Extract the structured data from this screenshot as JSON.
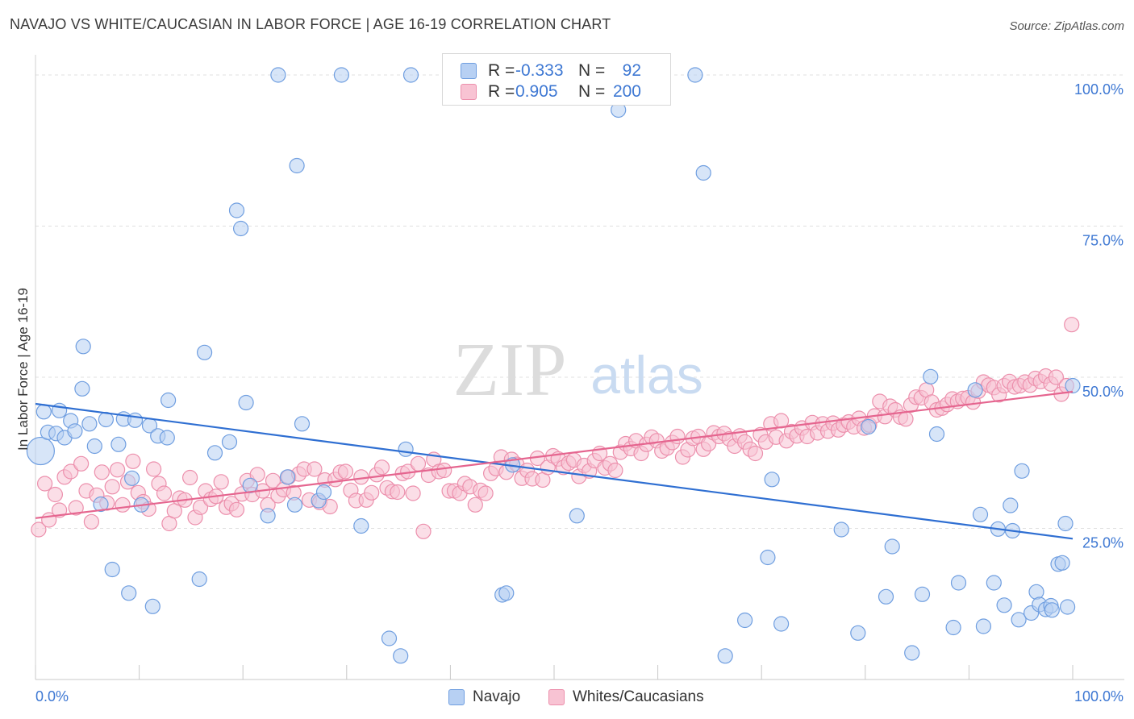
{
  "title": "NAVAJO VS WHITE/CAUCASIAN IN LABOR FORCE | AGE 16-19 CORRELATION CHART",
  "source": "Source: ZipAtlas.com",
  "watermark": {
    "zip": "ZIP",
    "atlas": "atlas"
  },
  "legend": {
    "navajo": {
      "r_label": "R =",
      "r_value": "-0.333",
      "n_label": "N =",
      "n_value": "92"
    },
    "white": {
      "r_label": "R =",
      "r_value": "0.905",
      "n_label": "N =",
      "n_value": "200"
    }
  },
  "bottom_legend": {
    "navajo": "Navajo",
    "white": "Whites/Caucasians"
  },
  "colors": {
    "navajo_fill": "#b7d0f3",
    "navajo_stroke": "#6f9ee0",
    "navajo_line": "#2f6fd2",
    "white_fill": "#f8c3d3",
    "white_stroke": "#ec8fac",
    "white_line": "#e5658f",
    "axis_text": "#3e78d3",
    "grid": "#e0e0e0"
  },
  "chart_data": {
    "type": "scatter",
    "title": "NAVAJO VS WHITE/CAUCASIAN IN LABOR FORCE | AGE 16-19 CORRELATION CHART",
    "xlabel": "",
    "ylabel": "In Labor Force | Age 16-19",
    "xlim": [
      0,
      100
    ],
    "ylim": [
      0,
      102
    ],
    "x_tick_labels": [
      "0.0%",
      "100.0%"
    ],
    "y_ticks": [
      25,
      50,
      75,
      100
    ],
    "y_tick_labels": [
      "25.0%",
      "50.0%",
      "75.0%",
      "100.0%"
    ],
    "grid": true,
    "legend_position": "top-center",
    "series": [
      {
        "name": "Navajo",
        "r": -0.333,
        "n": 92,
        "trend": {
          "x": [
            0,
            100
          ],
          "y": [
            45.6,
            23.3
          ]
        },
        "points": [
          [
            0.5,
            37.8,
            "large"
          ],
          [
            0.8,
            44.3
          ],
          [
            1.2,
            40.9
          ],
          [
            2.0,
            40.7
          ],
          [
            2.3,
            44.5
          ],
          [
            2.8,
            40.0
          ],
          [
            3.4,
            42.8
          ],
          [
            3.8,
            41.1
          ],
          [
            4.5,
            48.1
          ],
          [
            4.6,
            55.1
          ],
          [
            5.2,
            42.3
          ],
          [
            5.7,
            38.6
          ],
          [
            6.3,
            29.0
          ],
          [
            6.8,
            43.0
          ],
          [
            7.4,
            18.2
          ],
          [
            8.0,
            38.9
          ],
          [
            8.5,
            43.1
          ],
          [
            9.3,
            33.3
          ],
          [
            9.6,
            42.9
          ],
          [
            10.2,
            28.9
          ],
          [
            9.0,
            14.3
          ],
          [
            11.0,
            42.0
          ],
          [
            11.8,
            40.3
          ],
          [
            12.7,
            40.0
          ],
          [
            11.3,
            12.1
          ],
          [
            12.8,
            46.2
          ],
          [
            15.8,
            16.6
          ],
          [
            16.3,
            54.1
          ],
          [
            17.3,
            37.5
          ],
          [
            18.7,
            39.3
          ],
          [
            19.4,
            77.6
          ],
          [
            19.8,
            74.6
          ],
          [
            20.3,
            45.8
          ],
          [
            20.7,
            32.1
          ],
          [
            22.4,
            27.1
          ],
          [
            23.4,
            100
          ],
          [
            24.3,
            33.5
          ],
          [
            25.2,
            85.0
          ],
          [
            25.0,
            28.9
          ],
          [
            25.7,
            42.3
          ],
          [
            27.3,
            29.6
          ],
          [
            27.8,
            31.0
          ],
          [
            29.5,
            100
          ],
          [
            31.4,
            25.4
          ],
          [
            34.1,
            6.8
          ],
          [
            35.2,
            3.9
          ],
          [
            35.7,
            38.1
          ],
          [
            36.2,
            100
          ],
          [
            45.0,
            14.0
          ],
          [
            45.4,
            14.3
          ],
          [
            46.0,
            35.5
          ],
          [
            52.2,
            27.1
          ],
          [
            56.2,
            94.2
          ],
          [
            63.6,
            100
          ],
          [
            64.4,
            83.8
          ],
          [
            66.5,
            3.9
          ],
          [
            68.4,
            9.8
          ],
          [
            70.6,
            20.2
          ],
          [
            71.0,
            33.1
          ],
          [
            71.9,
            9.2
          ],
          [
            77.7,
            24.8
          ],
          [
            79.3,
            7.7
          ],
          [
            80.3,
            41.8
          ],
          [
            82.0,
            13.7
          ],
          [
            82.6,
            22.0
          ],
          [
            84.5,
            4.4
          ],
          [
            85.5,
            14.1
          ],
          [
            86.3,
            50.1
          ],
          [
            86.9,
            40.6
          ],
          [
            88.5,
            8.6
          ],
          [
            89.0,
            16.0
          ],
          [
            90.6,
            47.9
          ],
          [
            91.1,
            27.3
          ],
          [
            91.4,
            8.8
          ],
          [
            92.4,
            16.0
          ],
          [
            92.8,
            24.9
          ],
          [
            93.4,
            12.3
          ],
          [
            94.0,
            28.8
          ],
          [
            94.2,
            24.6
          ],
          [
            94.8,
            9.9
          ],
          [
            95.1,
            34.5
          ],
          [
            96.0,
            11.0
          ],
          [
            96.5,
            14.5
          ],
          [
            96.8,
            12.4
          ],
          [
            97.4,
            11.6
          ],
          [
            97.9,
            12.2
          ],
          [
            98.0,
            11.5
          ],
          [
            98.6,
            19.1
          ],
          [
            99.0,
            19.3
          ],
          [
            99.3,
            25.8
          ],
          [
            99.5,
            12.0
          ],
          [
            100.0,
            48.6
          ]
        ]
      },
      {
        "name": "Whites/Caucasians",
        "r": 0.905,
        "n": 200,
        "trend": {
          "x": [
            0,
            100
          ],
          "y": [
            26.7,
            47.6
          ]
        },
        "points": [
          [
            0.3,
            24.8
          ],
          [
            0.9,
            32.4
          ],
          [
            1.3,
            26.4
          ],
          [
            1.9,
            30.6
          ],
          [
            2.3,
            28.0
          ],
          [
            2.8,
            33.5
          ],
          [
            3.4,
            34.4
          ],
          [
            3.9,
            28.4
          ],
          [
            4.4,
            35.7
          ],
          [
            4.9,
            31.2
          ],
          [
            5.4,
            26.1
          ],
          [
            5.9,
            30.5
          ],
          [
            6.4,
            34.3
          ],
          [
            6.9,
            29.2
          ],
          [
            7.4,
            31.9
          ],
          [
            7.9,
            34.7
          ],
          [
            8.4,
            28.9
          ],
          [
            8.9,
            32.7
          ],
          [
            9.4,
            36.1
          ],
          [
            9.9,
            30.9
          ],
          [
            10.4,
            29.4
          ],
          [
            10.9,
            28.2
          ],
          [
            11.4,
            34.8
          ],
          [
            11.9,
            32.4
          ],
          [
            12.4,
            30.8
          ],
          [
            12.9,
            25.8
          ],
          [
            13.4,
            27.9
          ],
          [
            13.9,
            30.0
          ],
          [
            14.4,
            29.7
          ],
          [
            14.9,
            33.4
          ],
          [
            15.4,
            26.8
          ],
          [
            15.9,
            28.5
          ],
          [
            16.4,
            31.2
          ],
          [
            16.9,
            29.8
          ],
          [
            17.4,
            30.3
          ],
          [
            17.9,
            32.7
          ],
          [
            18.4,
            28.5
          ],
          [
            18.9,
            29.1
          ],
          [
            19.4,
            28.1
          ],
          [
            19.9,
            30.7
          ],
          [
            20.4,
            32.9
          ],
          [
            20.9,
            30.6
          ],
          [
            21.4,
            33.9
          ],
          [
            21.9,
            31.2
          ],
          [
            22.4,
            28.9
          ],
          [
            22.9,
            32.9
          ],
          [
            23.4,
            30.4
          ],
          [
            23.9,
            31.4
          ],
          [
            24.4,
            33.5
          ],
          [
            24.9,
            30.9
          ],
          [
            25.4,
            34.0
          ],
          [
            25.9,
            34.8
          ],
          [
            26.4,
            29.7
          ],
          [
            26.9,
            34.8
          ],
          [
            27.4,
            29.3
          ],
          [
            27.9,
            33.0
          ],
          [
            28.4,
            28.6
          ],
          [
            28.9,
            33.1
          ],
          [
            29.4,
            34.3
          ],
          [
            29.9,
            34.4
          ],
          [
            30.4,
            31.3
          ],
          [
            30.9,
            29.6
          ],
          [
            31.4,
            33.5
          ],
          [
            31.9,
            29.7
          ],
          [
            32.4,
            30.9
          ],
          [
            32.9,
            33.9
          ],
          [
            33.4,
            35.1
          ],
          [
            33.9,
            31.7
          ],
          [
            34.4,
            31.1
          ],
          [
            34.9,
            31.0
          ],
          [
            35.4,
            34.1
          ],
          [
            35.9,
            34.4
          ],
          [
            36.4,
            30.8
          ],
          [
            36.9,
            35.7
          ],
          [
            37.4,
            24.5
          ],
          [
            37.9,
            33.8
          ],
          [
            38.4,
            36.4
          ],
          [
            38.9,
            34.4
          ],
          [
            39.4,
            34.6
          ],
          [
            39.9,
            31.2
          ],
          [
            40.4,
            31.2
          ],
          [
            40.9,
            30.8
          ],
          [
            41.4,
            32.4
          ],
          [
            41.9,
            31.9
          ],
          [
            42.4,
            28.9
          ],
          [
            42.9,
            31.3
          ],
          [
            43.4,
            30.8
          ],
          [
            43.9,
            34.1
          ],
          [
            44.4,
            34.9
          ],
          [
            44.9,
            36.8
          ],
          [
            45.4,
            34.3
          ],
          [
            45.9,
            36.4
          ],
          [
            46.4,
            35.6
          ],
          [
            46.9,
            33.3
          ],
          [
            47.4,
            34.6
          ],
          [
            47.9,
            33.2
          ],
          [
            48.4,
            36.6
          ],
          [
            48.9,
            33.0
          ],
          [
            49.4,
            35.1
          ],
          [
            49.9,
            37.0
          ],
          [
            50.4,
            36.5
          ],
          [
            50.9,
            35.1
          ],
          [
            51.4,
            35.8
          ],
          [
            51.9,
            36.3
          ],
          [
            52.4,
            33.6
          ],
          [
            52.9,
            35.4
          ],
          [
            53.4,
            34.5
          ],
          [
            53.9,
            36.2
          ],
          [
            54.4,
            37.4
          ],
          [
            54.9,
            35.0
          ],
          [
            55.4,
            35.7
          ],
          [
            55.9,
            34.6
          ],
          [
            56.4,
            37.6
          ],
          [
            56.9,
            39.0
          ],
          [
            57.4,
            38.2
          ],
          [
            57.9,
            39.5
          ],
          [
            58.4,
            37.4
          ],
          [
            58.9,
            38.9
          ],
          [
            59.4,
            40.1
          ],
          [
            59.9,
            39.5
          ],
          [
            60.4,
            37.8
          ],
          [
            60.9,
            38.3
          ],
          [
            61.4,
            39.2
          ],
          [
            61.9,
            40.2
          ],
          [
            62.4,
            36.8
          ],
          [
            62.9,
            38.0
          ],
          [
            63.4,
            39.9
          ],
          [
            63.9,
            40.2
          ],
          [
            64.4,
            38.1
          ],
          [
            64.9,
            39.0
          ],
          [
            65.4,
            40.8
          ],
          [
            65.9,
            40.2
          ],
          [
            66.4,
            40.7
          ],
          [
            66.9,
            39.8
          ],
          [
            67.4,
            38.6
          ],
          [
            67.9,
            40.3
          ],
          [
            68.4,
            39.3
          ],
          [
            68.9,
            38.1
          ],
          [
            69.4,
            37.4
          ],
          [
            69.9,
            40.5
          ],
          [
            70.4,
            39.3
          ],
          [
            70.9,
            42.3
          ],
          [
            71.4,
            40.1
          ],
          [
            71.9,
            42.8
          ],
          [
            72.4,
            39.5
          ],
          [
            72.9,
            41.0
          ],
          [
            73.4,
            40.3
          ],
          [
            73.9,
            41.6
          ],
          [
            74.4,
            40.2
          ],
          [
            74.9,
            42.5
          ],
          [
            75.4,
            40.8
          ],
          [
            75.9,
            42.3
          ],
          [
            76.4,
            41.1
          ],
          [
            76.9,
            42.4
          ],
          [
            77.4,
            41.3
          ],
          [
            77.9,
            42.1
          ],
          [
            78.4,
            42.6
          ],
          [
            78.9,
            41.8
          ],
          [
            79.4,
            43.2
          ],
          [
            79.9,
            41.6
          ],
          [
            80.4,
            42.1
          ],
          [
            80.9,
            43.6
          ],
          [
            81.4,
            46.0
          ],
          [
            81.9,
            43.5
          ],
          [
            82.4,
            45.2
          ],
          [
            82.9,
            44.6
          ],
          [
            83.4,
            43.4
          ],
          [
            83.9,
            43.1
          ],
          [
            84.4,
            45.4
          ],
          [
            84.9,
            46.7
          ],
          [
            85.4,
            46.6
          ],
          [
            85.9,
            47.9
          ],
          [
            86.4,
            45.9
          ],
          [
            86.9,
            44.6
          ],
          [
            87.4,
            44.9
          ],
          [
            87.9,
            45.5
          ],
          [
            88.4,
            46.4
          ],
          [
            88.9,
            46.0
          ],
          [
            89.4,
            46.5
          ],
          [
            89.9,
            46.6
          ],
          [
            90.4,
            45.9
          ],
          [
            90.9,
            47.7
          ],
          [
            91.4,
            49.2
          ],
          [
            91.9,
            48.7
          ],
          [
            92.4,
            48.3
          ],
          [
            92.9,
            47.1
          ],
          [
            93.4,
            48.6
          ],
          [
            93.9,
            49.3
          ],
          [
            94.4,
            48.4
          ],
          [
            94.9,
            48.6
          ],
          [
            95.4,
            49.2
          ],
          [
            95.9,
            48.7
          ],
          [
            96.4,
            49.8
          ],
          [
            96.9,
            49.3
          ],
          [
            97.4,
            50.2
          ],
          [
            97.9,
            48.9
          ],
          [
            98.4,
            50.0
          ],
          [
            98.9,
            47.2
          ],
          [
            99.4,
            48.6
          ],
          [
            99.9,
            58.7
          ]
        ]
      }
    ]
  }
}
